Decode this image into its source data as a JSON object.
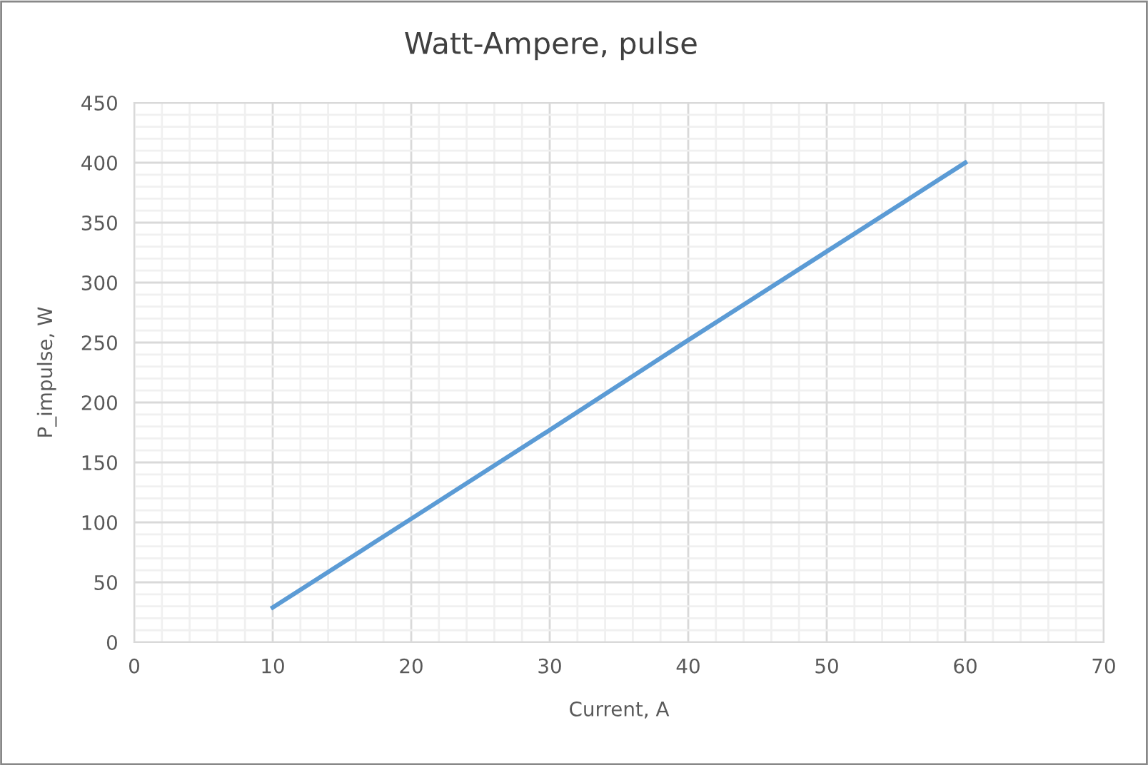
{
  "chart_data": {
    "type": "line",
    "title": "Watt-Ampere, pulse",
    "xlabel": "Current, A",
    "ylabel": "P_impulse, W",
    "x": [
      10,
      20,
      30,
      40,
      50,
      60
    ],
    "series": [
      {
        "color": "#5b9bd5",
        "values": [
          29,
          103,
          177,
          252,
          326,
          400
        ]
      }
    ],
    "xlim": [
      0,
      70
    ],
    "xticks": [
      0,
      10,
      20,
      30,
      40,
      50,
      60,
      70
    ],
    "ylim": [
      0,
      450
    ],
    "yticks": [
      0,
      50,
      100,
      150,
      200,
      250,
      300,
      350,
      400,
      450
    ],
    "grid": true,
    "marker": "none",
    "line_style": "solid"
  }
}
